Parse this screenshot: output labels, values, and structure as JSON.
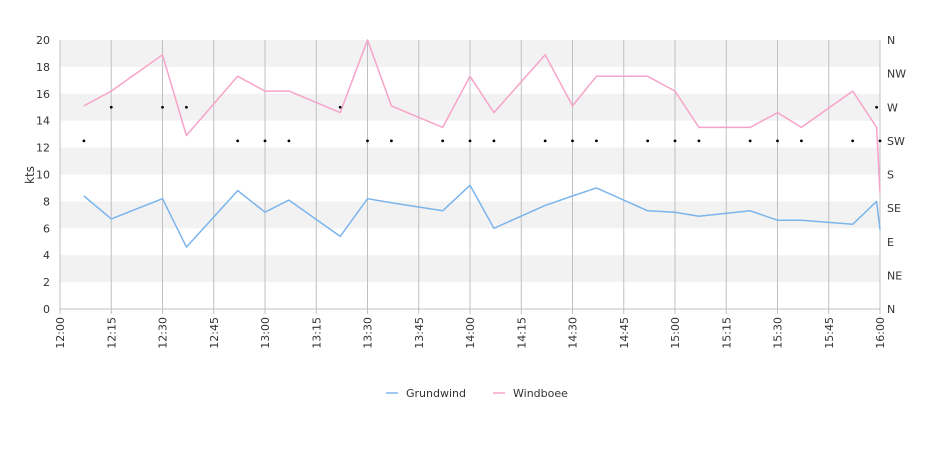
{
  "chart_data": {
    "type": "line",
    "title": "",
    "xlabel": "",
    "ylabel": "kts",
    "ylim": [
      0,
      20
    ],
    "y_ticks": [
      "0",
      "2",
      "4",
      "6",
      "8",
      "10",
      "12",
      "14",
      "16",
      "18",
      "20"
    ],
    "x_ticks": [
      "12:00",
      "12:15",
      "12:30",
      "12:45",
      "13:00",
      "13:15",
      "13:30",
      "13:45",
      "14:00",
      "14:15",
      "14:30",
      "14:45",
      "15:00",
      "15:15",
      "15:30",
      "15:45",
      "16:00"
    ],
    "direction_ticks": [
      "N",
      "NE",
      "E",
      "SE",
      "S",
      "SW",
      "W",
      "NW",
      "N"
    ],
    "x": [
      "12:07",
      "12:15",
      "12:30",
      "12:37",
      "12:52",
      "13:00",
      "13:07",
      "13:22",
      "13:30",
      "13:37",
      "13:52",
      "14:00",
      "14:07",
      "14:22",
      "14:30",
      "14:37",
      "14:52",
      "15:00",
      "15:07",
      "15:22",
      "15:30",
      "15:37",
      "15:52",
      "15:59",
      "16:00"
    ],
    "series": [
      {
        "name": "Grundwind",
        "color": "#7cb5ec",
        "values": [
          8.4,
          6.7,
          8.2,
          4.6,
          8.8,
          7.2,
          8.1,
          5.4,
          8.2,
          7.9,
          7.3,
          9.2,
          6.0,
          7.7,
          8.4,
          9.0,
          7.3,
          7.2,
          6.9,
          7.3,
          6.6,
          6.6,
          6.3,
          8.0,
          5.9
        ]
      },
      {
        "name": "Windboee",
        "color": "#f7a3c9",
        "values": [
          15.1,
          16.2,
          18.9,
          12.9,
          17.3,
          16.2,
          16.2,
          14.6,
          20.0,
          15.1,
          13.5,
          17.3,
          14.6,
          18.9,
          15.1,
          17.3,
          17.3,
          16.2,
          13.5,
          13.5,
          14.6,
          13.5,
          16.2,
          13.5,
          8.6
        ]
      }
    ],
    "direction_points": [
      {
        "x": "12:07",
        "dir": "SW"
      },
      {
        "x": "12:15",
        "dir": "W"
      },
      {
        "x": "12:30",
        "dir": "W"
      },
      {
        "x": "12:37",
        "dir": "W"
      },
      {
        "x": "12:52",
        "dir": "SW"
      },
      {
        "x": "13:00",
        "dir": "SW"
      },
      {
        "x": "13:07",
        "dir": "SW"
      },
      {
        "x": "13:22",
        "dir": "W"
      },
      {
        "x": "13:30",
        "dir": "SW"
      },
      {
        "x": "13:37",
        "dir": "SW"
      },
      {
        "x": "13:52",
        "dir": "SW"
      },
      {
        "x": "14:00",
        "dir": "SW"
      },
      {
        "x": "14:07",
        "dir": "SW"
      },
      {
        "x": "14:22",
        "dir": "SW"
      },
      {
        "x": "14:30",
        "dir": "SW"
      },
      {
        "x": "14:37",
        "dir": "SW"
      },
      {
        "x": "14:52",
        "dir": "SW"
      },
      {
        "x": "15:00",
        "dir": "SW"
      },
      {
        "x": "15:07",
        "dir": "SW"
      },
      {
        "x": "15:22",
        "dir": "SW"
      },
      {
        "x": "15:30",
        "dir": "SW"
      },
      {
        "x": "15:37",
        "dir": "SW"
      },
      {
        "x": "15:52",
        "dir": "SW"
      },
      {
        "x": "15:59",
        "dir": "W"
      },
      {
        "x": "16:00",
        "dir": "SW"
      }
    ],
    "grid": true,
    "legend_position": "bottom-center",
    "colors": {
      "band": "#f2f2f2",
      "grid": "#c0c0c0",
      "axis": "#333333",
      "dot": "#000000"
    }
  }
}
